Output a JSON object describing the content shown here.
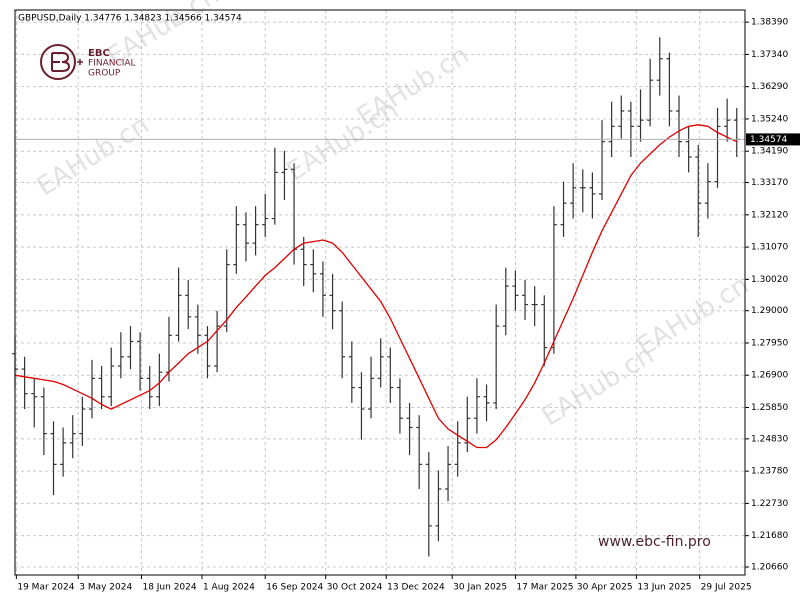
{
  "chart_data": {
    "type": "ohlc",
    "title": "GBPUSD,Daily  1.34776 1.34823 1.34566 1.34574",
    "brand": {
      "name": "EBC",
      "line1": "FINANCIAL",
      "line2": "GROUP"
    },
    "website": "www.ebc-fin.pro",
    "watermarks": [
      "EAHub.cn",
      "EAHub.cn",
      "EAHub.cn",
      "EAHub.cn",
      "EAHub.cn",
      "EAHub.cn"
    ],
    "x": [
      "2024-03-18",
      "2024-03-25",
      "2024-04-01",
      "2024-04-08",
      "2024-04-15",
      "2024-04-22",
      "2024-04-29",
      "2024-05-06",
      "2024-05-13",
      "2024-05-20",
      "2024-05-27",
      "2024-06-03",
      "2024-06-10",
      "2024-06-17",
      "2024-06-24",
      "2024-07-01",
      "2024-07-08",
      "2024-07-15",
      "2024-07-22",
      "2024-07-29",
      "2024-08-05",
      "2024-08-12",
      "2024-08-19",
      "2024-08-26",
      "2024-09-02",
      "2024-09-09",
      "2024-09-16",
      "2024-09-23",
      "2024-09-30",
      "2024-10-07",
      "2024-10-14",
      "2024-10-21",
      "2024-10-28",
      "2024-11-04",
      "2024-11-11",
      "2024-11-18",
      "2024-11-25",
      "2024-12-02",
      "2024-12-09",
      "2024-12-16",
      "2024-12-23",
      "2024-12-30",
      "2025-01-06",
      "2025-01-13",
      "2025-01-20",
      "2025-01-27",
      "2025-02-03",
      "2025-02-10",
      "2025-02-17",
      "2025-02-24",
      "2025-03-03",
      "2025-03-10",
      "2025-03-17",
      "2025-03-24",
      "2025-03-31",
      "2025-04-07",
      "2025-04-14",
      "2025-04-21",
      "2025-04-28",
      "2025-05-05",
      "2025-05-12",
      "2025-05-19",
      "2025-05-26",
      "2025-06-02",
      "2025-06-09",
      "2025-06-16",
      "2025-06-23",
      "2025-06-30",
      "2025-07-07",
      "2025-07-14",
      "2025-07-21",
      "2025-07-28",
      "2025-08-04",
      "2025-08-11",
      "2025-08-18",
      "2025-08-25"
    ],
    "open": [
      1.276,
      1.271,
      1.263,
      1.262,
      1.25,
      1.24,
      1.247,
      1.25,
      1.258,
      1.268,
      1.262,
      1.272,
      1.275,
      1.28,
      1.268,
      1.262,
      1.27,
      1.282,
      1.295,
      1.288,
      1.282,
      1.272,
      1.285,
      1.305,
      1.318,
      1.312,
      1.318,
      1.32,
      1.335,
      1.336,
      1.31,
      1.305,
      1.302,
      1.295,
      1.29,
      1.275,
      1.265,
      1.258,
      1.268,
      1.275,
      1.265,
      1.255,
      1.252,
      1.24,
      1.22,
      1.232,
      1.24,
      1.247,
      1.255,
      1.262,
      1.26,
      1.285,
      1.298,
      1.295,
      1.292,
      1.292,
      1.278,
      1.318,
      1.325,
      1.33,
      1.33,
      1.328,
      1.345,
      1.35,
      1.355,
      1.35,
      1.352,
      1.365,
      1.372,
      1.355,
      1.345,
      1.34,
      1.325,
      1.332,
      1.35,
      1.352
    ],
    "high": [
      1.282,
      1.275,
      1.268,
      1.265,
      1.254,
      1.252,
      1.256,
      1.262,
      1.274,
      1.272,
      1.278,
      1.283,
      1.285,
      1.283,
      1.272,
      1.276,
      1.288,
      1.304,
      1.3,
      1.292,
      1.285,
      1.29,
      1.31,
      1.324,
      1.322,
      1.324,
      1.328,
      1.343,
      1.342,
      1.338,
      1.314,
      1.31,
      1.306,
      1.302,
      1.293,
      1.28,
      1.27,
      1.275,
      1.281,
      1.278,
      1.268,
      1.26,
      1.256,
      1.244,
      1.238,
      1.246,
      1.254,
      1.262,
      1.268,
      1.266,
      1.292,
      1.304,
      1.303,
      1.3,
      1.298,
      1.295,
      1.324,
      1.332,
      1.338,
      1.336,
      1.335,
      1.352,
      1.358,
      1.36,
      1.358,
      1.362,
      1.372,
      1.379,
      1.374,
      1.36,
      1.35,
      1.344,
      1.338,
      1.356,
      1.359,
      1.356
    ],
    "low": [
      1.265,
      1.258,
      1.252,
      1.243,
      1.23,
      1.236,
      1.242,
      1.246,
      1.255,
      1.258,
      1.259,
      1.268,
      1.271,
      1.264,
      1.258,
      1.259,
      1.267,
      1.28,
      1.284,
      1.276,
      1.268,
      1.27,
      1.283,
      1.302,
      1.306,
      1.308,
      1.314,
      1.318,
      1.326,
      1.305,
      1.298,
      1.296,
      1.288,
      1.284,
      1.268,
      1.26,
      1.248,
      1.255,
      1.265,
      1.26,
      1.25,
      1.243,
      1.232,
      1.21,
      1.215,
      1.228,
      1.236,
      1.244,
      1.25,
      1.254,
      1.258,
      1.282,
      1.29,
      1.287,
      1.285,
      1.272,
      1.276,
      1.314,
      1.32,
      1.322,
      1.32,
      1.326,
      1.34,
      1.346,
      1.34,
      1.345,
      1.35,
      1.36,
      1.35,
      1.34,
      1.335,
      1.314,
      1.32,
      1.33,
      1.345,
      1.34
    ],
    "close": [
      1.271,
      1.263,
      1.262,
      1.25,
      1.24,
      1.247,
      1.25,
      1.258,
      1.268,
      1.262,
      1.272,
      1.275,
      1.28,
      1.268,
      1.262,
      1.27,
      1.282,
      1.295,
      1.288,
      1.282,
      1.272,
      1.285,
      1.305,
      1.318,
      1.312,
      1.318,
      1.32,
      1.335,
      1.336,
      1.31,
      1.305,
      1.302,
      1.295,
      1.29,
      1.275,
      1.265,
      1.258,
      1.268,
      1.275,
      1.265,
      1.255,
      1.252,
      1.24,
      1.22,
      1.232,
      1.24,
      1.247,
      1.255,
      1.262,
      1.26,
      1.285,
      1.298,
      1.295,
      1.292,
      1.292,
      1.278,
      1.318,
      1.325,
      1.33,
      1.33,
      1.328,
      1.345,
      1.35,
      1.355,
      1.35,
      1.352,
      1.365,
      1.372,
      1.355,
      1.345,
      1.34,
      1.325,
      1.332,
      1.35,
      1.352,
      1.34574
    ],
    "color": "#333333",
    "ma": {
      "color": "#e00000",
      "values": [
        1.269,
        1.2685,
        1.268,
        1.2675,
        1.267,
        1.266,
        1.2645,
        1.263,
        1.2615,
        1.2595,
        1.258,
        1.2595,
        1.261,
        1.2625,
        1.264,
        1.2665,
        1.27,
        1.273,
        1.276,
        1.278,
        1.28,
        1.2835,
        1.287,
        1.291,
        1.2945,
        1.298,
        1.3015,
        1.304,
        1.307,
        1.31,
        1.312,
        1.3125,
        1.313,
        1.312,
        1.309,
        1.305,
        1.301,
        1.297,
        1.293,
        1.2875,
        1.281,
        1.2745,
        1.268,
        1.2615,
        1.255,
        1.2515,
        1.2495,
        1.2475,
        1.2455,
        1.2455,
        1.248,
        1.252,
        1.2565,
        1.261,
        1.2665,
        1.273,
        1.28,
        1.287,
        1.294,
        1.3015,
        1.309,
        1.316,
        1.322,
        1.328,
        1.334,
        1.338,
        1.341,
        1.344,
        1.3465,
        1.3485,
        1.35,
        1.3505,
        1.35,
        1.348,
        1.3465,
        1.345
      ]
    },
    "last_price": 1.34574,
    "xlim": [
      "2024-03-18",
      "2025-08-31"
    ],
    "xticks": [
      {
        "value": "2024-03-19",
        "label": "19 Mar 2024"
      },
      {
        "value": "2024-05-03",
        "label": "3 May 2024"
      },
      {
        "value": "2024-06-18",
        "label": "18 Jun 2024"
      },
      {
        "value": "2024-08-01",
        "label": "1 Aug 2024"
      },
      {
        "value": "2024-09-16",
        "label": "16 Sep 2024"
      },
      {
        "value": "2024-10-30",
        "label": "30 Oct 2024"
      },
      {
        "value": "2024-12-13",
        "label": "13 Dec 2024"
      },
      {
        "value": "2025-01-30",
        "label": "30 Jan 2025"
      },
      {
        "value": "2025-03-17",
        "label": "17 Mar 2025"
      },
      {
        "value": "2025-04-30",
        "label": "30 Apr 2025"
      },
      {
        "value": "2025-06-13",
        "label": "13 Jun 2025"
      },
      {
        "value": "2025-07-29",
        "label": "29 Jul 2025"
      }
    ],
    "ylim": [
      1.204,
      1.3872
    ],
    "yticks": [
      {
        "value": 1.3839,
        "label": "1.38390"
      },
      {
        "value": 1.3734,
        "label": "1.37340"
      },
      {
        "value": 1.3629,
        "label": "1.36290"
      },
      {
        "value": 1.3524,
        "label": "1.35240"
      },
      {
        "value": 1.3419,
        "label": "1.34190"
      },
      {
        "value": 1.3317,
        "label": "1.33170"
      },
      {
        "value": 1.3212,
        "label": "1.32120"
      },
      {
        "value": 1.3107,
        "label": "1.31070"
      },
      {
        "value": 1.3002,
        "label": "1.30020"
      },
      {
        "value": 1.29,
        "label": "1.29000"
      },
      {
        "value": 1.2795,
        "label": "1.27950"
      },
      {
        "value": 1.269,
        "label": "1.26900"
      },
      {
        "value": 1.2585,
        "label": "1.25850"
      },
      {
        "value": 1.2483,
        "label": "1.24830"
      },
      {
        "value": 1.2378,
        "label": "1.23780"
      },
      {
        "value": 1.2273,
        "label": "1.22730"
      },
      {
        "value": 1.2168,
        "label": "1.21680"
      },
      {
        "value": 1.2066,
        "label": "1.20660"
      }
    ],
    "grid": true
  }
}
